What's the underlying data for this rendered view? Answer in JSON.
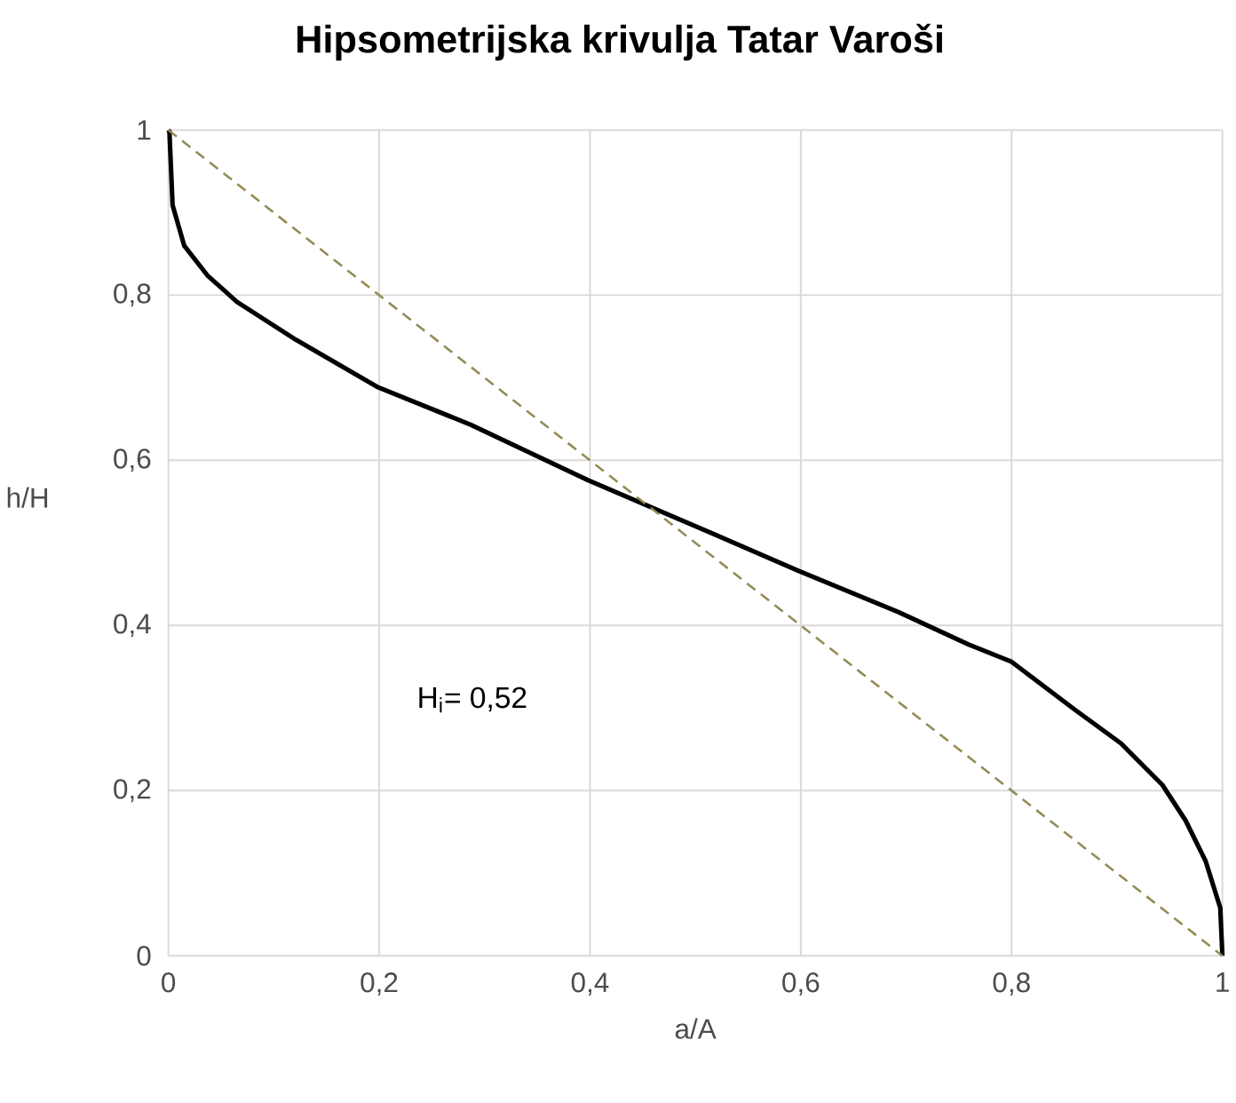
{
  "chart_data": {
    "type": "line",
    "title": "Hipsometrijska krivulja Tatar Varoši",
    "xlabel": "a/A",
    "ylabel": "h/H",
    "xlim": [
      0,
      1
    ],
    "ylim": [
      0,
      1
    ],
    "xticks": [
      0,
      {
        "value": 0.2,
        "label": "0,2"
      },
      {
        "value": 0.4,
        "label": "0,4"
      },
      {
        "value": 0.6,
        "label": "0,6"
      },
      {
        "value": 0.8,
        "label": "0,8"
      },
      1
    ],
    "yticks": [
      0,
      {
        "value": 0.2,
        "label": "0,2"
      },
      {
        "value": 0.4,
        "label": "0,4"
      },
      {
        "value": 0.6,
        "label": "0,6"
      },
      {
        "value": 0.8,
        "label": "0,8"
      },
      1
    ],
    "grid": true,
    "series": [
      {
        "color": "#000000",
        "line_style": "solid",
        "x": [
          0,
          0.001,
          0.004,
          0.015,
          0.037,
          0.065,
          0.121,
          0.198,
          0.287,
          0.398,
          0.482,
          0.515,
          0.598,
          0.693,
          0.759,
          0.8,
          0.859,
          0.904,
          0.943,
          0.965,
          0.984,
          0.998,
          1.0
        ],
        "values": [
          1,
          0.998,
          0.909,
          0.86,
          0.824,
          0.792,
          0.746,
          0.689,
          0.643,
          0.576,
          0.53,
          0.512,
          0.466,
          0.416,
          0.377,
          0.356,
          0.299,
          0.257,
          0.207,
          0.164,
          0.115,
          0.058,
          0
        ]
      },
      {
        "color": "#948a54",
        "line_style": "dashed",
        "x": [
          0,
          1
        ],
        "values": [
          1,
          0
        ]
      }
    ],
    "annotations": [
      "H$_{i}$= 0,52"
    ]
  }
}
